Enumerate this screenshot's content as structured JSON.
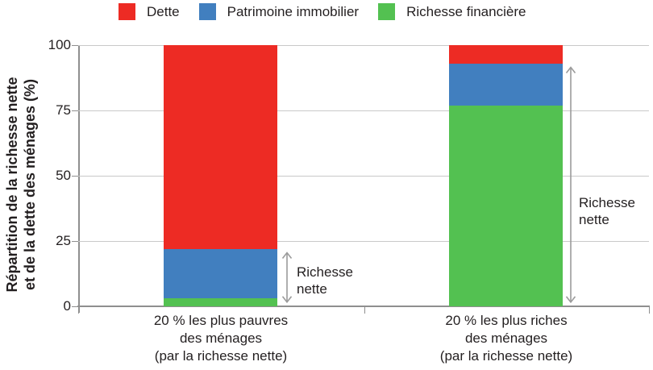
{
  "legend": {
    "items": [
      {
        "label": "Dette",
        "color": "#ED2B24"
      },
      {
        "label": "Patrimoine immobilier",
        "color": "#417FBF"
      },
      {
        "label": "Richesse financière",
        "color": "#53C151"
      }
    ]
  },
  "y_axis": {
    "title_line1": "Répartition de la richesse nette",
    "title_line2": "et de la dette des ménages (%)",
    "ticks": [
      0,
      25,
      50,
      75,
      100
    ]
  },
  "x_labels": [
    {
      "line1": "20 % les plus pauvres",
      "line2": "des ménages",
      "line3": "(par la richesse nette)"
    },
    {
      "line1": "20 % les plus riches",
      "line2": "des ménages",
      "line3": "(par la richesse nette)"
    }
  ],
  "annotations": [
    {
      "line1": "Richesse",
      "line2": "nette",
      "span": [
        0,
        22
      ]
    },
    {
      "line1": "Richesse",
      "line2": "nette",
      "span": [
        0,
        93
      ]
    }
  ],
  "chart_data": {
    "type": "bar",
    "stacked": true,
    "categories": [
      "20 % les plus pauvres des ménages (par la richesse nette)",
      "20 % les plus riches des ménages (par la richesse nette)"
    ],
    "series": [
      {
        "name": "Richesse financière",
        "color": "#53C151",
        "values": [
          3,
          77
        ]
      },
      {
        "name": "Patrimoine immobilier",
        "color": "#417FBF",
        "values": [
          19,
          16
        ]
      },
      {
        "name": "Dette",
        "color": "#ED2B24",
        "values": [
          78,
          7
        ]
      }
    ],
    "ylabel": "Répartition de la richesse nette et de la dette des ménages (%)",
    "ylim": [
      0,
      100
    ],
    "grid": true,
    "legend_position": "top",
    "net_worth_labels": [
      22,
      93
    ]
  },
  "colors": {
    "grid": "#c9c9c9",
    "axis": "#8f8f8f",
    "arrow": "#9b9b9b",
    "text": "#231f20"
  }
}
